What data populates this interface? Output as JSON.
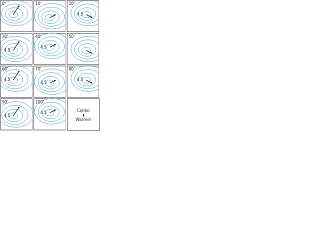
{
  "panels": [
    {
      "label": "0'"
    },
    {
      "label": "10'"
    },
    {
      "label": "20'",
      "annotation": "4.5"
    },
    {
      "label": "30'",
      "annotation": "4.5"
    },
    {
      "label": "40'",
      "annotation": "4.5"
    },
    {
      "label": "50'"
    },
    {
      "label": "60'",
      "annotation": "4.5"
    },
    {
      "label": "70'",
      "annotation": "4.5"
    },
    {
      "label": "80'",
      "annotation": "4.5"
    },
    {
      "label": "90'",
      "annotation": "4.5"
    },
    {
      "label": "100'",
      "annotation": "4.5"
    }
  ],
  "legend": {
    "lines": [
      "Colder",
      "Warmer"
    ]
  }
}
